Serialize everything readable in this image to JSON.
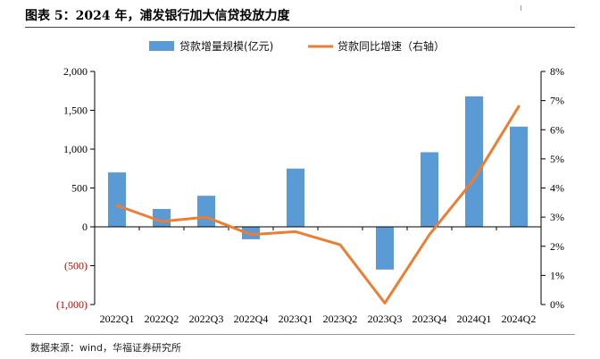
{
  "header": {
    "title": "图表 5：2024 年，浦发银行加大信贷投放力度"
  },
  "footer": {
    "source": "数据来源：wind，华福证券研究所"
  },
  "chart_data": {
    "type": "bar+line",
    "categories": [
      "2022Q1",
      "2022Q2",
      "2022Q3",
      "2022Q4",
      "2023Q1",
      "2023Q2",
      "2023Q3",
      "2023Q4",
      "2024Q1",
      "2024Q2"
    ],
    "series": [
      {
        "name": "贷款增量规模(亿元)",
        "type": "bar",
        "axis": "left",
        "color": "#5b9bd5",
        "values": [
          700,
          230,
          400,
          -160,
          750,
          0,
          -550,
          960,
          1680,
          1290
        ]
      },
      {
        "name": "贷款同比增速（右轴）",
        "type": "line",
        "axis": "right",
        "color": "#ed7d31",
        "values": [
          3.4,
          2.85,
          3.0,
          2.4,
          2.5,
          2.05,
          0.05,
          2.4,
          4.3,
          6.8
        ]
      }
    ],
    "left_axis": {
      "min": -1000,
      "max": 2000,
      "ticks": [
        2000,
        1500,
        1000,
        500,
        0,
        -500,
        -1000
      ],
      "tick_labels": [
        "2,000",
        "1,500",
        "1,000",
        "500",
        "0",
        "(500)",
        "(1,000)"
      ],
      "negative_color": "#c00000"
    },
    "right_axis": {
      "min": 0,
      "max": 8,
      "ticks": [
        8,
        7,
        6,
        5,
        4,
        3,
        2,
        1,
        0
      ],
      "tick_labels": [
        "8%",
        "7%",
        "6%",
        "5%",
        "4%",
        "3%",
        "2%",
        "1%",
        "0%"
      ]
    },
    "grid": false,
    "legend": "top-center"
  }
}
